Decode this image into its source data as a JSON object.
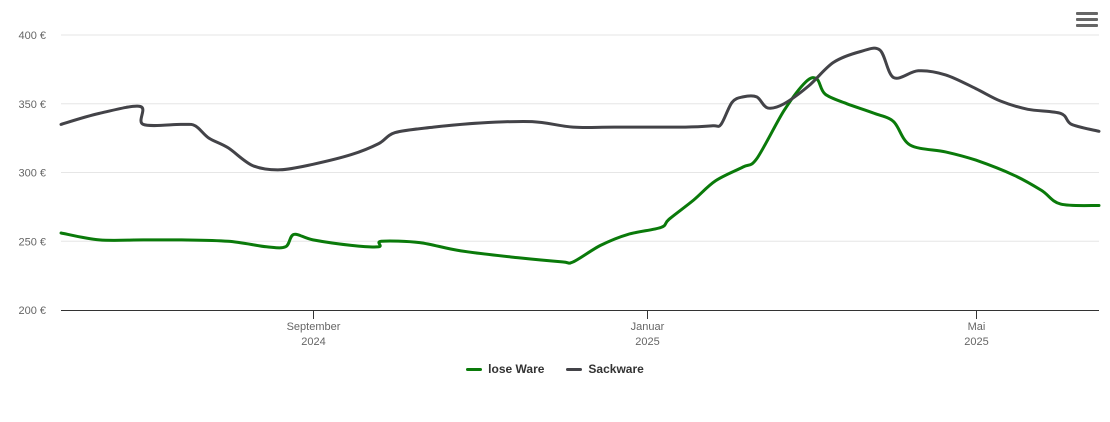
{
  "menu": {
    "icon": "hamburger-menu-icon"
  },
  "colors": {
    "lose_ware": "#0a7a0a",
    "sackware": "#434348",
    "grid": "#e6e6e6",
    "axis": "#333333"
  },
  "chart_data": {
    "type": "line",
    "title": "",
    "xlabel": "",
    "ylabel": "",
    "x_range": [
      "2024-06-01",
      "2025-06-15"
    ],
    "ylim": [
      200,
      400
    ],
    "y_ticks": [
      {
        "value": 200,
        "label": "200 €"
      },
      {
        "value": 250,
        "label": "250 €"
      },
      {
        "value": 300,
        "label": "300 €"
      },
      {
        "value": 350,
        "label": "350 €"
      },
      {
        "value": 400,
        "label": "400 €"
      }
    ],
    "x_ticks": [
      {
        "date": "2024-09-01",
        "month": "September",
        "year": "2024"
      },
      {
        "date": "2025-01-01",
        "month": "Januar",
        "year": "2025"
      },
      {
        "date": "2025-05-01",
        "month": "Mai",
        "year": "2025"
      }
    ],
    "grid": true,
    "legend_position": "bottom-center",
    "series": [
      {
        "name": "lose Ware",
        "color": "#0a7a0a",
        "points": [
          [
            "2024-06-01",
            256
          ],
          [
            "2024-06-15",
            251
          ],
          [
            "2024-07-01",
            251
          ],
          [
            "2024-07-15",
            251
          ],
          [
            "2024-08-01",
            250
          ],
          [
            "2024-08-15",
            246
          ],
          [
            "2024-08-22",
            246
          ],
          [
            "2024-08-25",
            255
          ],
          [
            "2024-09-01",
            251
          ],
          [
            "2024-09-15",
            247
          ],
          [
            "2024-09-25",
            246
          ],
          [
            "2024-09-26",
            250
          ],
          [
            "2024-10-10",
            249
          ],
          [
            "2024-10-25",
            243
          ],
          [
            "2024-11-15",
            238
          ],
          [
            "2024-12-01",
            235
          ],
          [
            "2024-12-05",
            235
          ],
          [
            "2024-12-15",
            247
          ],
          [
            "2024-12-25",
            255
          ],
          [
            "2025-01-06",
            260
          ],
          [
            "2025-01-09",
            266
          ],
          [
            "2025-01-18",
            280
          ],
          [
            "2025-01-26",
            294
          ],
          [
            "2025-02-05",
            304
          ],
          [
            "2025-02-10",
            310
          ],
          [
            "2025-02-20",
            345
          ],
          [
            "2025-02-28",
            366
          ],
          [
            "2025-03-04",
            368
          ],
          [
            "2025-03-07",
            357
          ],
          [
            "2025-03-15",
            350
          ],
          [
            "2025-03-25",
            343
          ],
          [
            "2025-04-01",
            337
          ],
          [
            "2025-04-07",
            320
          ],
          [
            "2025-04-20",
            315
          ],
          [
            "2025-05-01",
            309
          ],
          [
            "2025-05-15",
            298
          ],
          [
            "2025-05-25",
            287
          ],
          [
            "2025-06-01",
            277
          ],
          [
            "2025-06-15",
            276
          ]
        ]
      },
      {
        "name": "Sackware",
        "color": "#434348",
        "points": [
          [
            "2024-06-01",
            335
          ],
          [
            "2024-06-15",
            343
          ],
          [
            "2024-06-30",
            348
          ],
          [
            "2024-07-01",
            335
          ],
          [
            "2024-07-15",
            335
          ],
          [
            "2024-07-20",
            334
          ],
          [
            "2024-07-25",
            325
          ],
          [
            "2024-08-01",
            318
          ],
          [
            "2024-08-10",
            305
          ],
          [
            "2024-08-20",
            302
          ],
          [
            "2024-09-01",
            306
          ],
          [
            "2024-09-15",
            313
          ],
          [
            "2024-09-25",
            321
          ],
          [
            "2024-10-01",
            329
          ],
          [
            "2024-10-15",
            333
          ],
          [
            "2024-11-01",
            336
          ],
          [
            "2024-11-20",
            337
          ],
          [
            "2024-12-05",
            333
          ],
          [
            "2024-12-20",
            333
          ],
          [
            "2025-01-15",
            333
          ],
          [
            "2025-01-25",
            334
          ],
          [
            "2025-01-28",
            335
          ],
          [
            "2025-02-01",
            351
          ],
          [
            "2025-02-05",
            355
          ],
          [
            "2025-02-10",
            355
          ],
          [
            "2025-02-14",
            347
          ],
          [
            "2025-02-20",
            350
          ],
          [
            "2025-03-01",
            363
          ],
          [
            "2025-03-10",
            380
          ],
          [
            "2025-03-20",
            388
          ],
          [
            "2025-03-27",
            389
          ],
          [
            "2025-04-01",
            369
          ],
          [
            "2025-04-10",
            374
          ],
          [
            "2025-04-20",
            371
          ],
          [
            "2025-05-01",
            361
          ],
          [
            "2025-05-10",
            352
          ],
          [
            "2025-05-20",
            346
          ],
          [
            "2025-06-01",
            343
          ],
          [
            "2025-06-05",
            335
          ],
          [
            "2025-06-15",
            330
          ]
        ]
      }
    ]
  }
}
